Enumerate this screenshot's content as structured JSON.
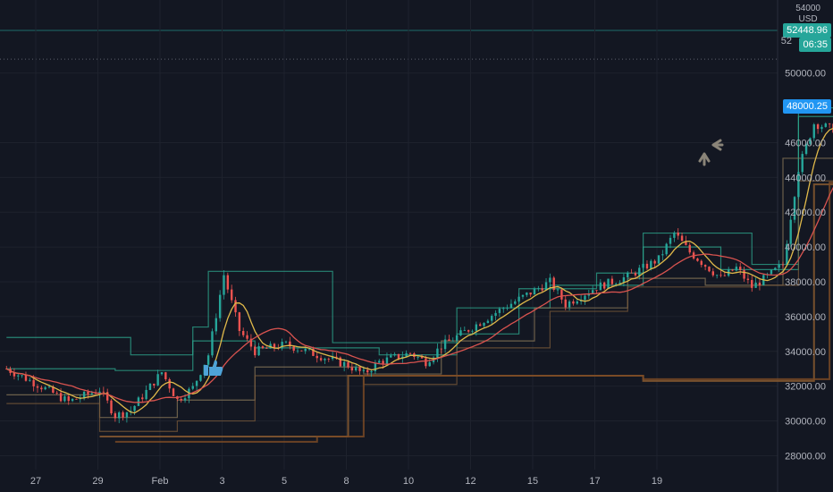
{
  "chart_data": {
    "type": "candlestick",
    "currency": "USD",
    "x_ticks": [
      "27",
      "29",
      "Feb",
      "3",
      "5",
      "8",
      "10",
      "12",
      "15",
      "17",
      "19"
    ],
    "y_ticks": [
      "28000.00",
      "30000.00",
      "32000.00",
      "34000.00",
      "36000.00",
      "38000.00",
      "40000.00",
      "42000.00",
      "44000.00",
      "46000.00",
      "50000.00"
    ],
    "ylim": [
      27200,
      54200
    ],
    "y_top_partial": "54000",
    "last_price": "52448.96",
    "countdown": "06:35",
    "blue_ma_label": "48000.25",
    "price_hidden_partial": "52",
    "price_path": [
      [
        -2,
        33000
      ],
      [
        0,
        32100
      ],
      [
        2,
        31100
      ],
      [
        4,
        31800
      ],
      [
        5,
        30300
      ],
      [
        6,
        30600
      ],
      [
        8,
        32800
      ],
      [
        9,
        31200
      ],
      [
        10,
        31900
      ],
      [
        11,
        33800
      ],
      [
        12,
        38400
      ],
      [
        13,
        35200
      ],
      [
        14,
        34000
      ],
      [
        16,
        34400
      ],
      [
        18,
        33800
      ],
      [
        20,
        33200
      ],
      [
        21,
        32700
      ],
      [
        22,
        33400
      ],
      [
        24,
        33900
      ],
      [
        25,
        33400
      ],
      [
        26,
        34300
      ],
      [
        28,
        35400
      ],
      [
        30,
        36500
      ],
      [
        32,
        37500
      ],
      [
        33,
        38000
      ],
      [
        34,
        36700
      ],
      [
        35,
        37200
      ],
      [
        36,
        37700
      ],
      [
        38,
        38300
      ],
      [
        40,
        39300
      ],
      [
        41,
        40800
      ],
      [
        42,
        39700
      ],
      [
        44,
        38200
      ],
      [
        45,
        38800
      ],
      [
        46,
        37700
      ],
      [
        47,
        38300
      ],
      [
        48,
        39000
      ],
      [
        49,
        44500
      ],
      [
        50,
        47100
      ],
      [
        52,
        46600
      ],
      [
        53,
        45900
      ],
      [
        54,
        46400
      ],
      [
        55,
        44600
      ],
      [
        56,
        44700
      ],
      [
        57,
        45400
      ],
      [
        58,
        46600
      ],
      [
        59,
        47800
      ],
      [
        60,
        47500
      ],
      [
        61,
        47100
      ],
      [
        62,
        47400
      ],
      [
        63,
        47200
      ],
      [
        64,
        47300
      ],
      [
        65,
        47600
      ],
      [
        66,
        49000
      ],
      [
        67,
        48200
      ],
      [
        68,
        47700
      ],
      [
        69,
        48000
      ],
      [
        70,
        46700
      ],
      [
        71,
        48000
      ],
      [
        72,
        49400
      ],
      [
        73,
        48300
      ],
      [
        74,
        49300
      ],
      [
        75,
        48200
      ],
      [
        76,
        50200
      ],
      [
        77,
        52000
      ],
      [
        78,
        52449
      ]
    ],
    "blue_ma": [
      [
        55,
        45100
      ],
      [
        56,
        45200
      ],
      [
        57,
        45500
      ],
      [
        58,
        46000
      ],
      [
        60,
        46400
      ],
      [
        62,
        46500
      ],
      [
        64,
        46700
      ],
      [
        66,
        46900
      ],
      [
        68,
        47100
      ],
      [
        70,
        47300
      ],
      [
        72,
        47500
      ],
      [
        74,
        47700
      ],
      [
        76,
        47900
      ],
      [
        78,
        48000
      ]
    ],
    "channels": [
      {
        "color": "#2ea88f",
        "steps": [
          [
            -2,
            34800
          ],
          [
            6,
            33800
          ],
          [
            10,
            35400
          ],
          [
            11,
            38600
          ],
          [
            19,
            34500
          ],
          [
            27,
            35000
          ],
          [
            31,
            37600
          ],
          [
            36,
            38500
          ],
          [
            39,
            40800
          ],
          [
            46,
            39000
          ],
          [
            49,
            48000
          ],
          [
            55,
            47300
          ],
          [
            58,
            49000
          ],
          [
            66,
            50000
          ],
          [
            74,
            51000
          ],
          [
            78,
            52600
          ]
        ]
      },
      {
        "color": "#2ea88f",
        "steps": [
          [
            -2,
            33000
          ],
          [
            5,
            32900
          ],
          [
            10,
            34600
          ],
          [
            14,
            34200
          ],
          [
            22,
            33800
          ],
          [
            27,
            36500
          ],
          [
            33,
            37800
          ],
          [
            39,
            40000
          ],
          [
            44,
            38700
          ],
          [
            49,
            47500
          ],
          [
            54,
            46700
          ],
          [
            58,
            47900
          ],
          [
            66,
            48500
          ],
          [
            72,
            49500
          ],
          [
            76,
            51000
          ]
        ]
      },
      {
        "color": "#8b7a5a",
        "steps": [
          [
            -2,
            31500
          ],
          [
            4,
            30200
          ],
          [
            9,
            31200
          ],
          [
            14,
            33100
          ],
          [
            21,
            32700
          ],
          [
            26,
            34600
          ],
          [
            32,
            36500
          ],
          [
            38,
            38200
          ],
          [
            43,
            37800
          ],
          [
            48,
            45100
          ],
          [
            55,
            44500
          ],
          [
            60,
            46500
          ],
          [
            68,
            46200
          ],
          [
            74,
            47200
          ]
        ]
      },
      {
        "color": "#7a5a3a",
        "steps": [
          [
            -2,
            31000
          ],
          [
            4,
            29400
          ],
          [
            9,
            30000
          ],
          [
            14,
            32600
          ],
          [
            21,
            32100
          ],
          [
            27,
            34200
          ],
          [
            33,
            36300
          ],
          [
            38,
            37700
          ],
          [
            46,
            37800
          ],
          [
            49,
            43800
          ],
          [
            57,
            44200
          ],
          [
            62,
            45800
          ],
          [
            70,
            45900
          ],
          [
            74,
            46200
          ],
          [
            77,
            45900
          ]
        ]
      },
      {
        "color": "#8a5a30",
        "steps": [
          [
            4,
            29100
          ],
          [
            20,
            32600
          ],
          [
            39,
            32300
          ],
          [
            50,
            43600
          ],
          [
            62,
            43600
          ],
          [
            76,
            47800
          ]
        ]
      },
      {
        "color": "#7a4a25",
        "steps": [
          [
            5,
            28800
          ],
          [
            18,
            29100
          ],
          [
            21,
            32600
          ],
          [
            39,
            32400
          ],
          [
            51,
            43700
          ],
          [
            63,
            43700
          ],
          [
            77,
            48000
          ]
        ]
      }
    ]
  },
  "annotations": {
    "thumb_icon": "thumbs-up-icon",
    "arrow_left_icon": "arrow-left-icon",
    "arrow_up_icon": "arrow-up-icon"
  },
  "colors": {
    "background": "#131722",
    "grid": "#1e222d",
    "up": "#26a69a",
    "down": "#ef5350",
    "ma_fast": "#e0b94a",
    "ma_slow": "#d9534f",
    "ma_blue": "#2196f3",
    "last_price_bg": "#26a69a",
    "blue_label_bg": "#2196f3",
    "axis_text": "#b2b5be"
  }
}
